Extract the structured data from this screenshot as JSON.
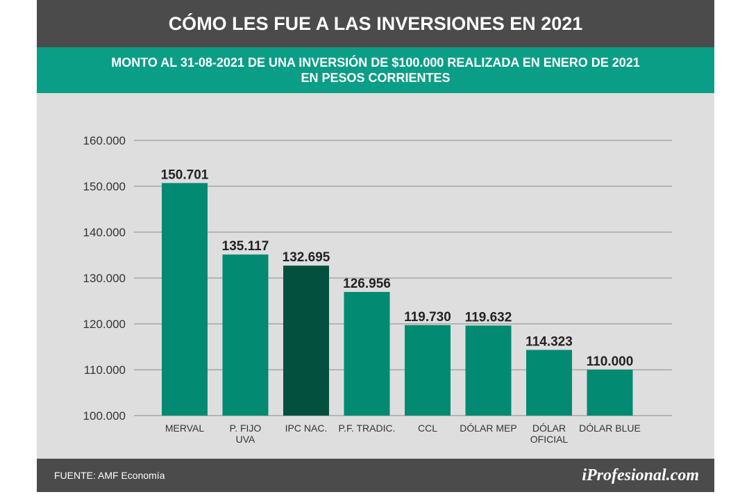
{
  "header": {
    "title": "CÓMO LES FUE A LAS INVERSIONES EN 2021",
    "subtitle_line1": "MONTO AL 31-08-2021 DE UNA INVERSIÓN DE $100.000 REALIZADA EN ENERO DE 2021",
    "subtitle_line2": "EN PESOS CORRIENTES"
  },
  "footer": {
    "source": "FUENTE: AMF Economía",
    "brand": "iProfesional.com"
  },
  "colors": {
    "title_bg": "#4b4b4b",
    "subtitle_bg": "#0b9e86",
    "bar": "#038a72",
    "bar_highlight": "#03503f",
    "plot_bg": "#dedede"
  },
  "chart_data": {
    "type": "bar",
    "title": "CÓMO LES FUE A LAS INVERSIONES EN 2021",
    "subtitle": "MONTO AL 31-08-2021 DE UNA INVERSIÓN DE $100.000 REALIZADA EN ENERO DE 2021 EN PESOS CORRIENTES",
    "categories": [
      [
        "MERVAL"
      ],
      [
        "P. FIJO",
        "UVA"
      ],
      [
        "IPC NAC."
      ],
      [
        "P.F. TRADIC."
      ],
      [
        "CCL"
      ],
      [
        "DÓLAR MEP"
      ],
      [
        "DÓLAR",
        "OFICIAL"
      ],
      [
        "DÓLAR BLUE"
      ]
    ],
    "values": [
      150701,
      135117,
      132695,
      126956,
      119730,
      119632,
      114323,
      110000
    ],
    "value_labels": [
      "150.701",
      "135.117",
      "132.695",
      "126.956",
      "119.730",
      "119.632",
      "114.323",
      "110.000"
    ],
    "highlight": "IPC NAC.",
    "ylim": [
      100000,
      160000
    ],
    "yticks": [
      100000,
      110000,
      120000,
      130000,
      140000,
      150000,
      160000
    ],
    "ytick_labels": [
      "100.000",
      "110.000",
      "120.000",
      "130.000",
      "140.000",
      "150.000",
      "160.000"
    ],
    "grid": true,
    "xlabel": "",
    "ylabel": ""
  }
}
